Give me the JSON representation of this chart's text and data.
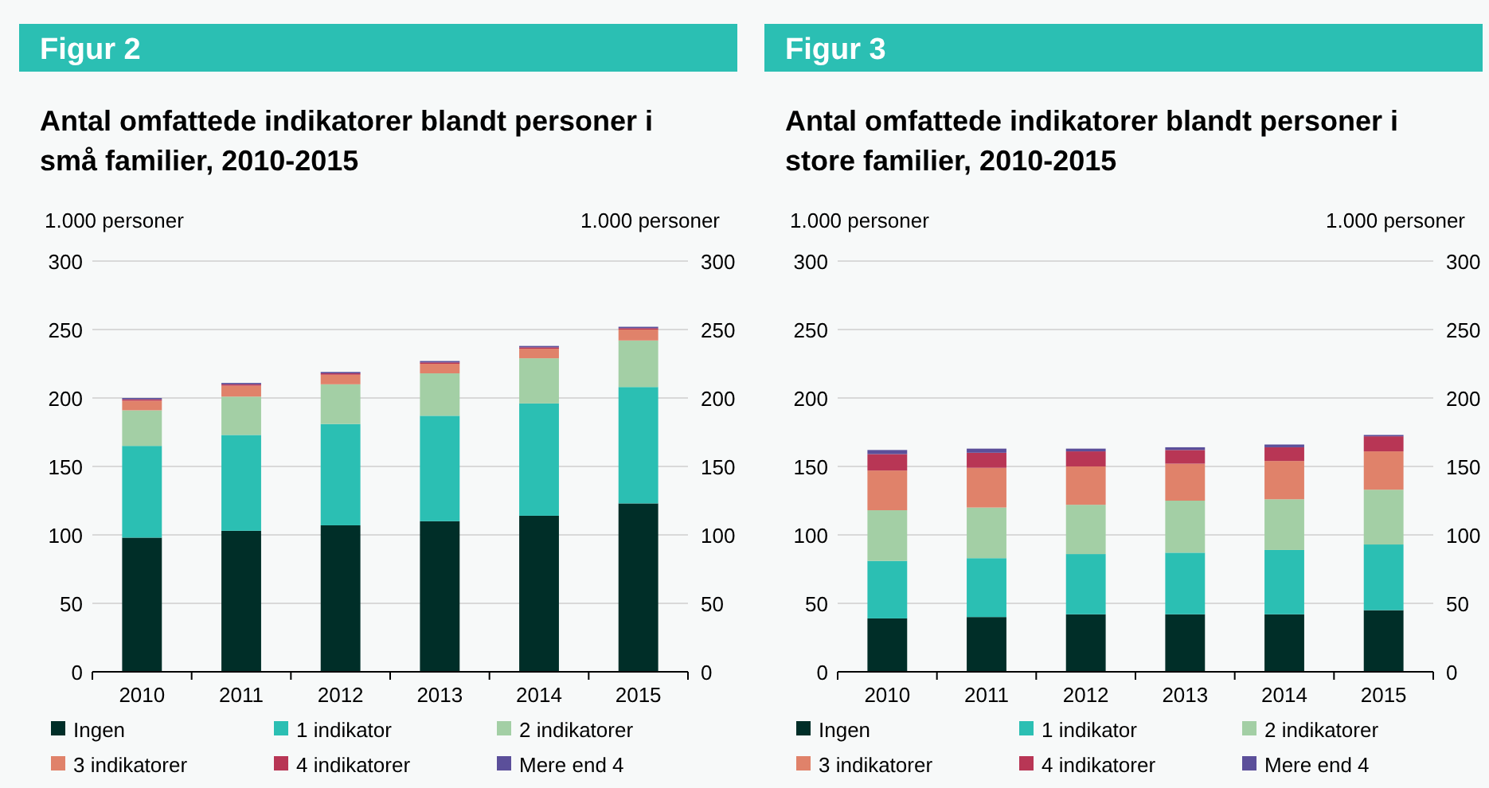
{
  "chart_data": [
    {
      "type": "bar",
      "title": "Figur 2",
      "subtitle": "Antal omfattede indikatorer blandt personer i små familier, 2010-2015",
      "ylabel": "1.000 personer",
      "y2label": "1.000 personer",
      "categories": [
        "2010",
        "2011",
        "2012",
        "2013",
        "2014",
        "2015"
      ],
      "stacked": true,
      "ylim": [
        0,
        300
      ],
      "yticks": [
        0,
        50,
        100,
        150,
        200,
        250,
        300
      ],
      "y2lim": [
        0,
        300
      ],
      "y2ticks": [
        0,
        50,
        100,
        150,
        200,
        250,
        300
      ],
      "grid": "y",
      "legend": "bottom",
      "series": [
        {
          "name": "Ingen",
          "color": "#002e28",
          "values": [
            98,
            103,
            107,
            110,
            114,
            123
          ]
        },
        {
          "name": "1 indikator",
          "color": "#2bbfb3",
          "values": [
            67,
            70,
            74,
            77,
            82,
            85
          ]
        },
        {
          "name": "2 indikatorer",
          "color": "#a3cfa5",
          "values": [
            26,
            28,
            29,
            31,
            33,
            34
          ]
        },
        {
          "name": "3 indikatorer",
          "color": "#e0826a",
          "values": [
            7,
            8,
            7,
            7,
            7,
            8
          ]
        },
        {
          "name": "4 indikatorer",
          "color": "#b83655",
          "values": [
            1,
            1,
            1,
            1,
            1,
            1
          ]
        },
        {
          "name": "Mere end 4",
          "color": "#5b4f9a",
          "values": [
            1,
            1,
            1,
            1,
            1,
            1
          ]
        }
      ]
    },
    {
      "type": "bar",
      "title": "Figur 3",
      "subtitle": "Antal omfattede indikatorer blandt personer i store familier, 2010-2015",
      "ylabel": "1.000 personer",
      "y2label": "1.000 personer",
      "categories": [
        "2010",
        "2011",
        "2012",
        "2013",
        "2014",
        "2015"
      ],
      "stacked": true,
      "ylim": [
        0,
        300
      ],
      "yticks": [
        0,
        50,
        100,
        150,
        200,
        250,
        300
      ],
      "y2lim": [
        0,
        300
      ],
      "y2ticks": [
        0,
        50,
        100,
        150,
        200,
        250,
        300
      ],
      "grid": "y",
      "legend": "bottom",
      "series": [
        {
          "name": "Ingen",
          "color": "#002e28",
          "values": [
            39,
            40,
            42,
            42,
            42,
            45
          ]
        },
        {
          "name": "1 indikator",
          "color": "#2bbfb3",
          "values": [
            42,
            43,
            44,
            45,
            47,
            48
          ]
        },
        {
          "name": "2 indikatorer",
          "color": "#a3cfa5",
          "values": [
            37,
            37,
            36,
            38,
            37,
            40
          ]
        },
        {
          "name": "3 indikatorer",
          "color": "#e0826a",
          "values": [
            29,
            29,
            28,
            27,
            28,
            28
          ]
        },
        {
          "name": "4 indikatorer",
          "color": "#b83655",
          "values": [
            12,
            11,
            11,
            10,
            10,
            11
          ]
        },
        {
          "name": "Mere end 4",
          "color": "#5b4f9a",
          "values": [
            3,
            3,
            2,
            2,
            2,
            1
          ]
        }
      ]
    }
  ]
}
